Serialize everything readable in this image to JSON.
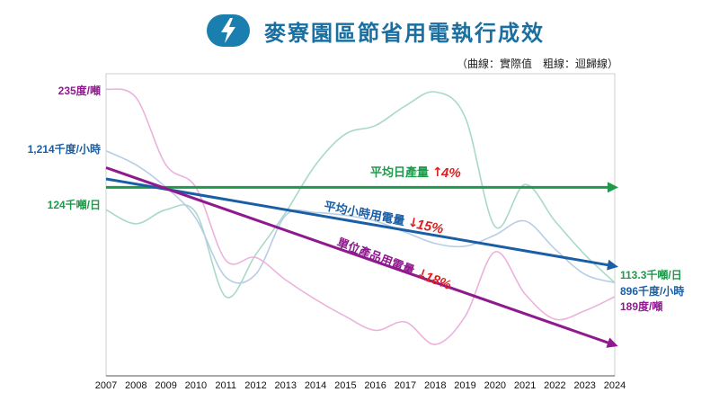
{
  "title": "麥寮園區節省用電執行成效",
  "subtitle": "（曲線：實際值　粗線：迴歸線）",
  "icon": "lightning-bolt-icon",
  "chart_data": {
    "type": "line",
    "x": [
      2007,
      2008,
      2009,
      2010,
      2011,
      2012,
      2013,
      2014,
      2015,
      2016,
      2017,
      2018,
      2019,
      2020,
      2021,
      2022,
      2023,
      2024
    ],
    "x_tick_labels": [
      "2007",
      "2008",
      "2009",
      "2010",
      "2011",
      "2012",
      "2013",
      "2014",
      "2015",
      "2016",
      "2017",
      "2018",
      "2019",
      "2020",
      "2021",
      "2022",
      "2023",
      "2024"
    ],
    "axes_visible_y": false,
    "grid": false,
    "colors": {
      "daily_output": "#1f9a4b",
      "hourly_power": "#1a5fa6",
      "unit_power": "#8e1a8e",
      "daily_output_actual": "#a9d9c8",
      "hourly_power_actual": "#b7cde6",
      "unit_power_actual": "#ecb2dc",
      "red_arrow": "#e02020"
    },
    "series": [
      {
        "key": "daily_output",
        "name": "平均日產量",
        "change": "4%",
        "direction": "up",
        "start_label": "124千噸/日",
        "end_label": "113.3千噸/日",
        "regression": [
          0.64,
          0.64
        ],
        "actual": [
          0.56,
          0.51,
          0.56,
          0.55,
          0.25,
          0.4,
          0.55,
          0.72,
          0.83,
          0.86,
          0.93,
          0.98,
          0.89,
          0.5,
          0.65,
          0.52,
          0.4,
          0.3
        ]
      },
      {
        "key": "hourly_power",
        "name": "平均小時用電量",
        "change": "15%",
        "direction": "down",
        "start_label": "1,214千度/小時",
        "end_label": "896千度/小時",
        "regression": [
          0.67,
          0.36
        ],
        "actual": [
          0.77,
          0.72,
          0.64,
          0.53,
          0.32,
          0.33,
          0.54,
          0.55,
          0.54,
          0.52,
          0.48,
          0.44,
          0.43,
          0.47,
          0.52,
          0.42,
          0.33,
          0.3
        ]
      },
      {
        "key": "unit_power",
        "name": "單位產品用電量",
        "change": "18%",
        "direction": "down",
        "start_label": "235度/噸",
        "end_label": "189度/噸",
        "regression": [
          0.71,
          0.08
        ],
        "actual": [
          0.99,
          0.96,
          0.72,
          0.64,
          0.38,
          0.39,
          0.31,
          0.24,
          0.18,
          0.13,
          0.16,
          0.08,
          0.18,
          0.41,
          0.26,
          0.17,
          0.2,
          0.25
        ]
      }
    ]
  }
}
